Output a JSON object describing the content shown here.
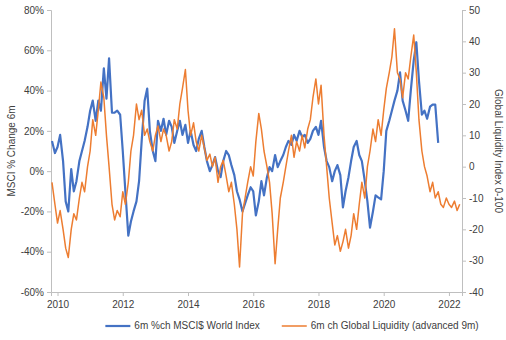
{
  "chart_data": {
    "type": "line",
    "x": [
      2009.83,
      2009.92,
      2010,
      2010.08,
      2010.17,
      2010.25,
      2010.33,
      2010.42,
      2010.5,
      2010.58,
      2010.67,
      2010.75,
      2010.83,
      2010.92,
      2011,
      2011.08,
      2011.17,
      2011.25,
      2011.33,
      2011.42,
      2011.5,
      2011.58,
      2011.67,
      2011.75,
      2011.83,
      2011.92,
      2012,
      2012.08,
      2012.17,
      2012.25,
      2012.33,
      2012.42,
      2012.5,
      2012.58,
      2012.67,
      2012.75,
      2012.83,
      2012.92,
      2013,
      2013.08,
      2013.17,
      2013.25,
      2013.33,
      2013.42,
      2013.5,
      2013.58,
      2013.67,
      2013.75,
      2013.83,
      2013.92,
      2014,
      2014.08,
      2014.17,
      2014.25,
      2014.33,
      2014.42,
      2014.5,
      2014.58,
      2014.67,
      2014.75,
      2014.83,
      2014.92,
      2015,
      2015.08,
      2015.17,
      2015.25,
      2015.33,
      2015.42,
      2015.5,
      2015.58,
      2015.67,
      2015.75,
      2015.83,
      2015.92,
      2016,
      2016.08,
      2016.17,
      2016.25,
      2016.33,
      2016.42,
      2016.5,
      2016.58,
      2016.67,
      2016.75,
      2016.83,
      2016.92,
      2017,
      2017.08,
      2017.17,
      2017.25,
      2017.33,
      2017.42,
      2017.5,
      2017.58,
      2017.67,
      2017.75,
      2017.83,
      2017.92,
      2018,
      2018.08,
      2018.17,
      2018.25,
      2018.33,
      2018.42,
      2018.5,
      2018.58,
      2018.67,
      2018.75,
      2018.83,
      2018.92,
      2019,
      2019.08,
      2019.17,
      2019.25,
      2019.33,
      2019.42,
      2019.5,
      2019.58,
      2019.67,
      2019.75,
      2019.83,
      2019.92,
      2020,
      2020.08,
      2020.17,
      2020.25,
      2020.33,
      2020.42,
      2020.5,
      2020.58,
      2020.67,
      2020.75,
      2020.83,
      2020.92,
      2021,
      2021.08,
      2021.17,
      2021.25,
      2021.33,
      2021.42,
      2021.5,
      2021.58,
      2021.67,
      2021.75,
      2021.83,
      2021.92,
      2022,
      2022.08,
      2022.17,
      2022.25,
      2022.33
    ],
    "xlim": [
      2009.8,
      2022.4
    ],
    "xticks": [
      2010,
      2012,
      2014,
      2016,
      2018,
      2020,
      2022
    ],
    "ylabel": "MSCI % Change 6m",
    "ylim": [
      -60,
      80
    ],
    "yticks": [
      {
        "value": -60,
        "label": "-60%"
      },
      {
        "value": -40,
        "label": "-40%"
      },
      {
        "value": -20,
        "label": "-20%"
      },
      {
        "value": 0,
        "label": "0%"
      },
      {
        "value": 20,
        "label": "20%"
      },
      {
        "value": 40,
        "label": "40%"
      },
      {
        "value": 60,
        "label": "60%"
      },
      {
        "value": 80,
        "label": "80%"
      }
    ],
    "y2label": "Global Liquidity Index 0-100",
    "y2lim": [
      -40,
      50
    ],
    "y2ticks": [
      -40,
      -30,
      -20,
      -10,
      0,
      10,
      20,
      30,
      40,
      50
    ],
    "grid": false,
    "legend": "bottom",
    "series": [
      {
        "name": "6m %ch MSCI$ World Index",
        "color": "#4472c4",
        "values": [
          15,
          9,
          12,
          18,
          5,
          -15,
          -20,
          1,
          -10,
          -5,
          5,
          10,
          15,
          22,
          30,
          35,
          25,
          35,
          30,
          51,
          36,
          56,
          29,
          29,
          30,
          28,
          10,
          -10,
          -32,
          -25,
          -20,
          -15,
          -5,
          15,
          35,
          41,
          20,
          10,
          5,
          25,
          20,
          26,
          18,
          25,
          22,
          14,
          20,
          25,
          18,
          23,
          14,
          20,
          13,
          10,
          16,
          20,
          12,
          5,
          0,
          3,
          7,
          0,
          -3,
          5,
          10,
          8,
          3,
          -2,
          -10,
          -14,
          -20,
          -16,
          -12,
          -8,
          -10,
          -22,
          -15,
          -5,
          -12,
          -3,
          2,
          0,
          8,
          2,
          5,
          8,
          12,
          15,
          13,
          18,
          15,
          20,
          17,
          18,
          14,
          16,
          20,
          22,
          18,
          25,
          12,
          5,
          2,
          -5,
          0,
          3,
          -2,
          -18,
          -10,
          -3,
          5,
          12,
          15,
          8,
          5,
          -5,
          -15,
          -28,
          -20,
          -12,
          -13,
          -14,
          0,
          20,
          25,
          30,
          35,
          40,
          49,
          35,
          30,
          25,
          40,
          55,
          64,
          45,
          28,
          30,
          26,
          32,
          33,
          33,
          14,
          null,
          null,
          null,
          null,
          null,
          null,
          null,
          null
        ]
      },
      {
        "name": "6m ch Global Liquidity (advanced 9m)",
        "color": "#ed7d31",
        "axis": "y2",
        "values": [
          -5,
          -12,
          -18,
          -14,
          -20,
          -26,
          -29,
          -20,
          -15,
          -17,
          -10,
          -5,
          -8,
          0,
          5,
          15,
          10,
          18,
          27,
          22,
          10,
          0,
          -12,
          -17,
          -14,
          -16,
          -8,
          -12,
          -5,
          5,
          10,
          20,
          15,
          18,
          10,
          12,
          8,
          5,
          10,
          13,
          8,
          12,
          10,
          5,
          8,
          15,
          12,
          20,
          25,
          31,
          18,
          10,
          14,
          8,
          5,
          10,
          6,
          2,
          4,
          0,
          3,
          -5,
          0,
          2,
          -3,
          -8,
          -5,
          -12,
          -20,
          -32,
          -15,
          -10,
          -5,
          0,
          -3,
          8,
          17,
          12,
          5,
          0,
          -5,
          -15,
          -31,
          -20,
          -10,
          -5,
          0,
          5,
          10,
          3,
          8,
          5,
          10,
          6,
          12,
          15,
          22,
          28,
          20,
          26,
          10,
          0,
          -10,
          -18,
          -25,
          -22,
          -27,
          -24,
          -20,
          -26,
          -22,
          -15,
          -20,
          -12,
          -5,
          -10,
          0,
          5,
          12,
          8,
          15,
          10,
          18,
          25,
          30,
          35,
          44,
          30,
          28,
          22,
          30,
          28,
          35,
          42,
          30,
          15,
          5,
          0,
          -3,
          -8,
          -5,
          -10,
          -8,
          -12,
          -13,
          -10,
          -12,
          -13,
          -11,
          -14,
          -12
        ]
      }
    ]
  }
}
